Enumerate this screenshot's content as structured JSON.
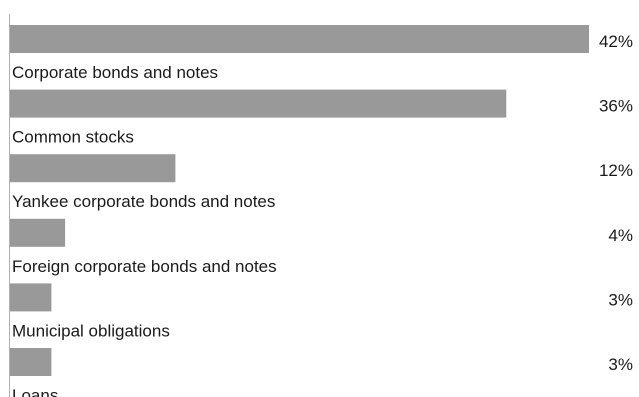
{
  "chart_data": {
    "type": "bar",
    "orientation": "horizontal",
    "categories": [
      "Corporate bonds and notes",
      "Common stocks",
      "Yankee corporate bonds and notes",
      "Foreign corporate bonds and notes",
      "Municipal obligations",
      "Loans"
    ],
    "values": [
      42,
      36,
      12,
      4,
      3,
      3
    ],
    "value_labels": [
      "42%",
      "36%",
      "12%",
      "4%",
      "3%",
      "3%"
    ],
    "xlim": [
      0,
      42
    ],
    "bar_color": "#999999",
    "grid": false,
    "legend": "none"
  }
}
